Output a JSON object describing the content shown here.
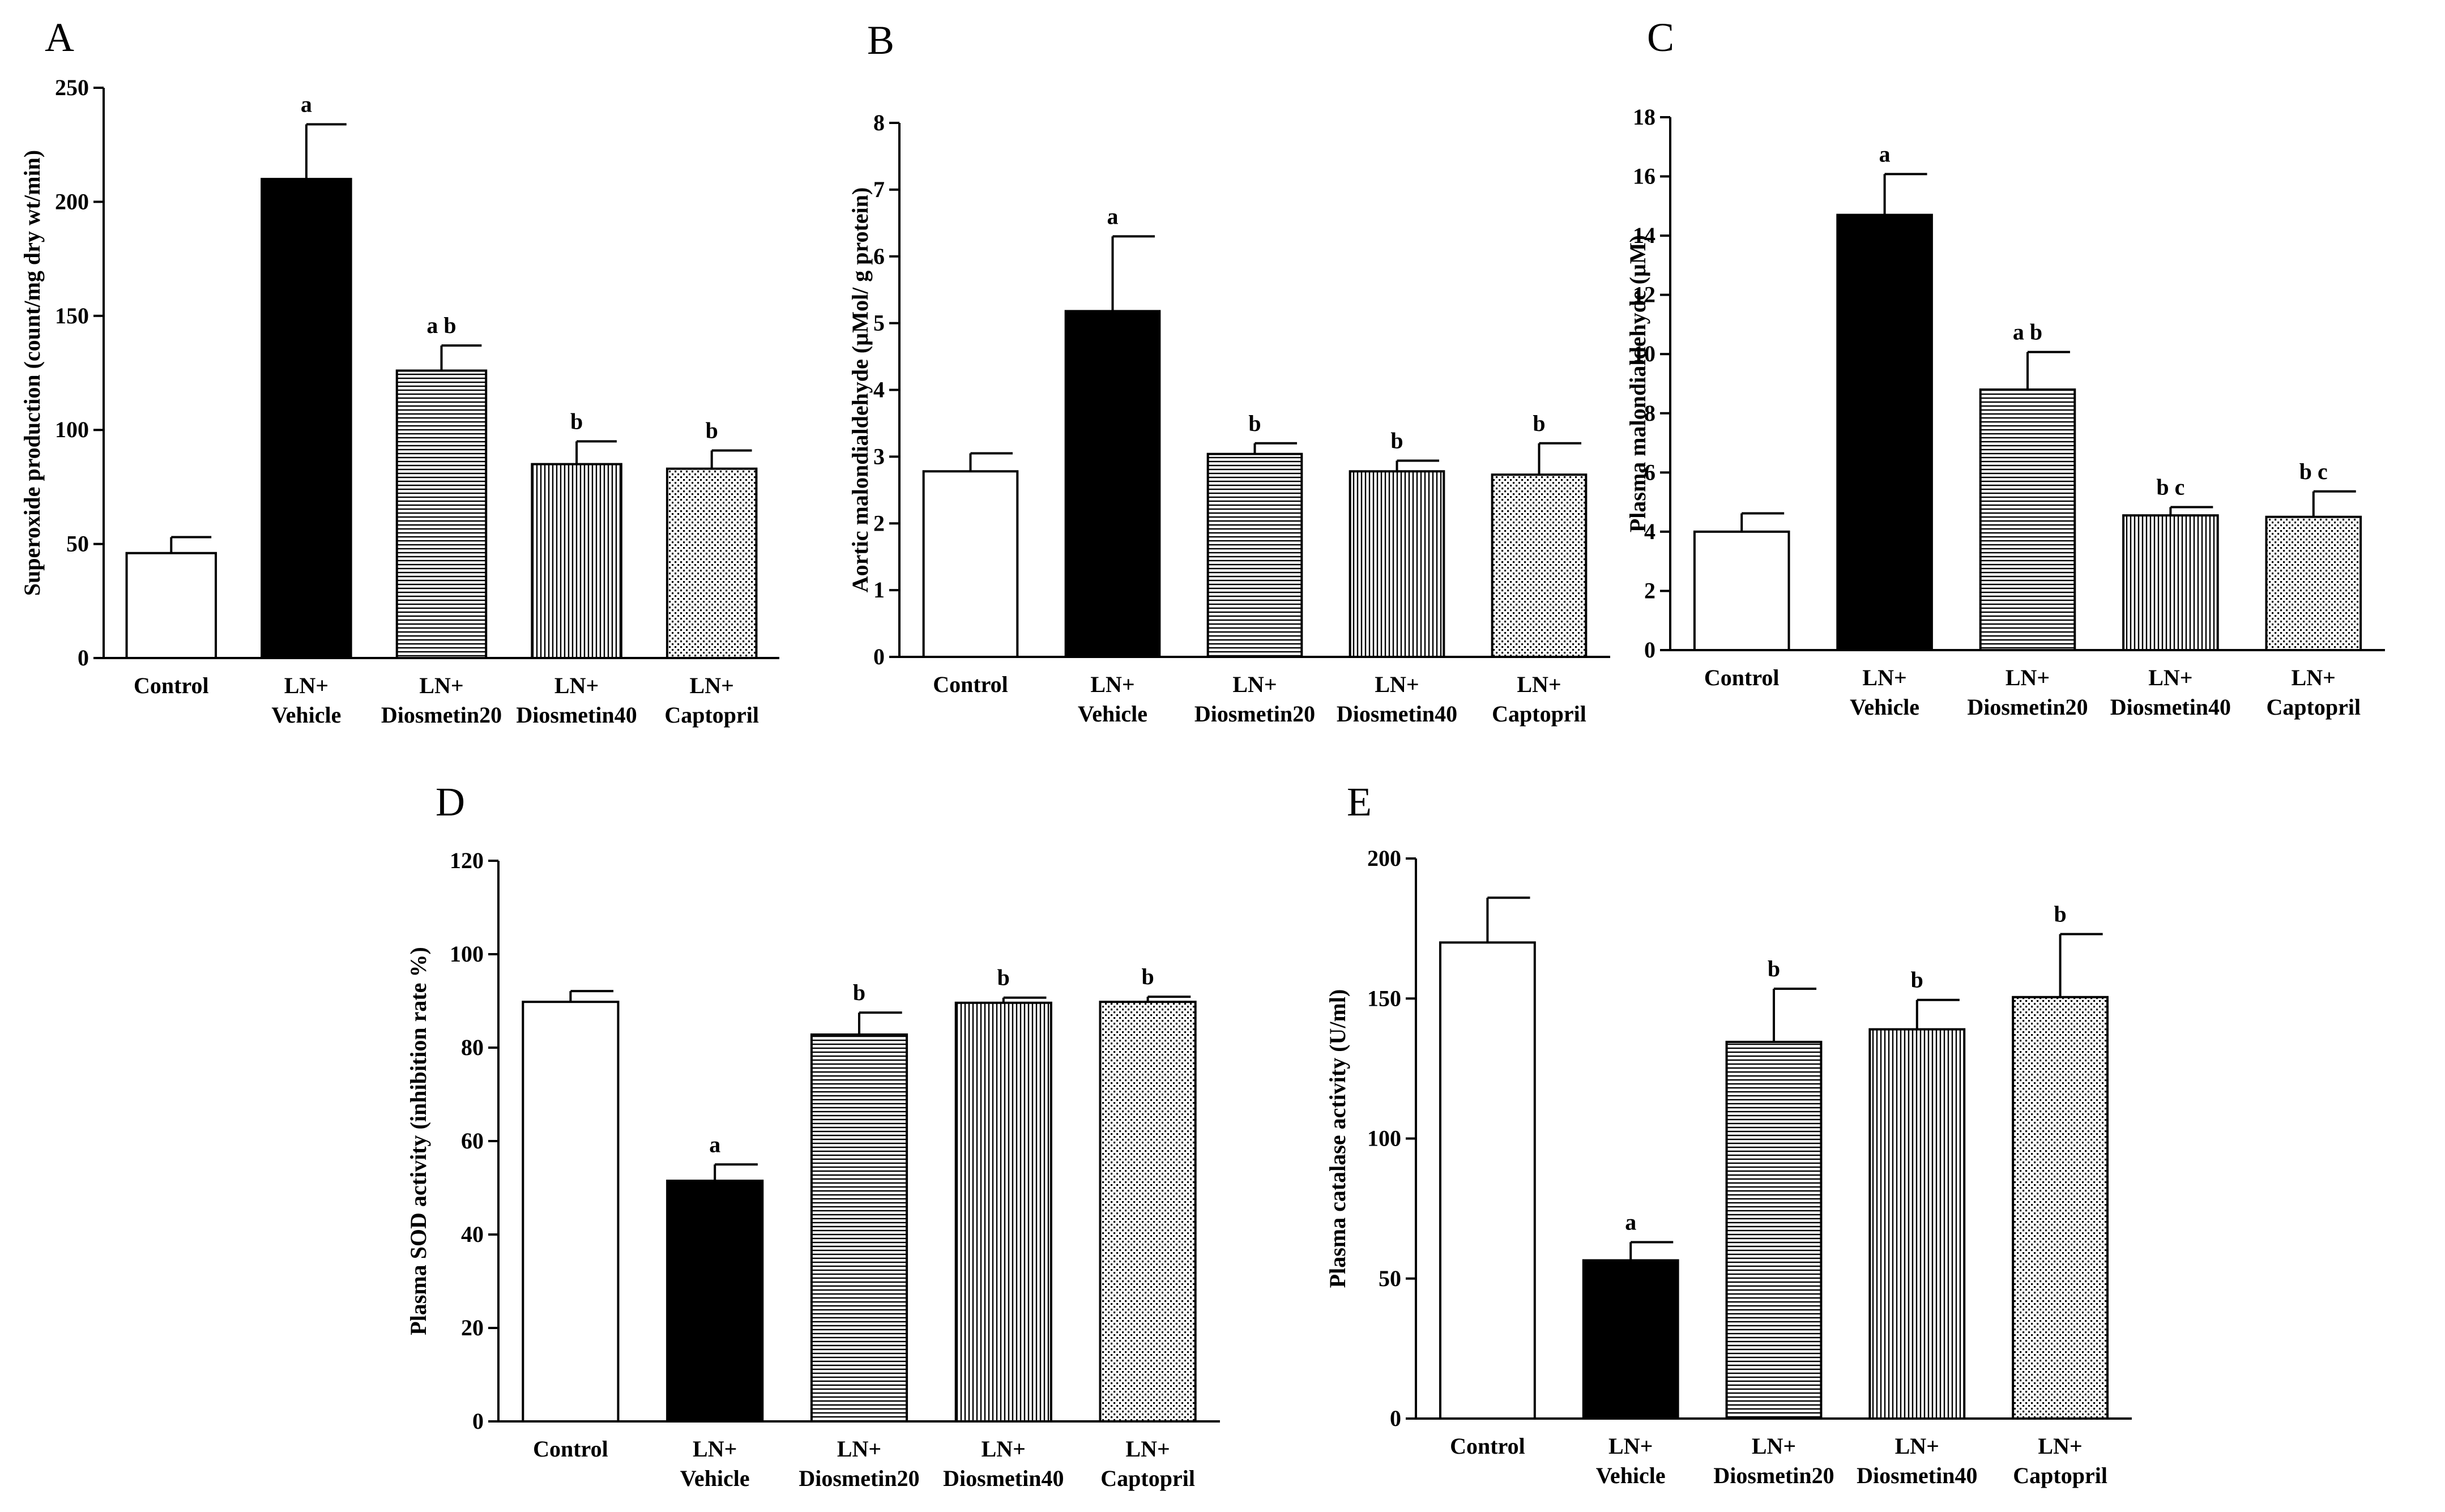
{
  "chart_data": [
    {
      "panel": "A",
      "type": "bar",
      "title": "",
      "xlabel": "",
      "ylabel": "Superoxide production (count/mg dry wt/min)",
      "ylim": [
        0,
        250
      ],
      "yticks": [
        0,
        50,
        100,
        150,
        200,
        250
      ],
      "categories": [
        [
          "Control"
        ],
        [
          "LN+",
          "Vehicle"
        ],
        [
          "LN+",
          "Diosmetin20"
        ],
        [
          "LN+",
          "Diosmetin40"
        ],
        [
          "LN+",
          "Captopril"
        ]
      ],
      "values": [
        46,
        210,
        126,
        85,
        83
      ],
      "errors": [
        7,
        24,
        11,
        10,
        8
      ],
      "significance": [
        "",
        "a",
        "a b",
        "b",
        "b"
      ],
      "fills": [
        "white",
        "black",
        "hlines",
        "vlines",
        "dots"
      ]
    },
    {
      "panel": "B",
      "type": "bar",
      "title": "",
      "xlabel": "",
      "ylabel": "Aortic malondialdehyde (µMol/ g protein)",
      "ylim": [
        0,
        8
      ],
      "yticks": [
        0,
        1,
        2,
        3,
        4,
        5,
        6,
        7,
        8
      ],
      "categories": [
        [
          "Control"
        ],
        [
          "LN+",
          "Vehicle"
        ],
        [
          "LN+",
          "Diosmetin20"
        ],
        [
          "LN+",
          "Diosmetin40"
        ],
        [
          "LN+",
          "Captopril"
        ]
      ],
      "values": [
        2.78,
        5.18,
        3.04,
        2.78,
        2.73
      ],
      "errors": [
        0.27,
        1.12,
        0.16,
        0.16,
        0.47
      ],
      "significance": [
        "",
        "a",
        "b",
        "b",
        "b"
      ],
      "fills": [
        "white",
        "black",
        "hlines",
        "vlines",
        "dots"
      ]
    },
    {
      "panel": "C",
      "type": "bar",
      "title": "",
      "xlabel": "",
      "ylabel": "Plasma malondialdehyde (µM)",
      "ylim": [
        0,
        18
      ],
      "yticks": [
        0,
        2,
        4,
        6,
        8,
        10,
        12,
        14,
        16,
        18
      ],
      "categories": [
        [
          "Control"
        ],
        [
          "LN+",
          "Vehicle"
        ],
        [
          "LN+",
          "Diosmetin20"
        ],
        [
          "LN+",
          "Diosmetin40"
        ],
        [
          "LN+",
          "Captopril"
        ]
      ],
      "values": [
        4.0,
        14.7,
        8.8,
        4.55,
        4.5
      ],
      "errors": [
        0.62,
        1.38,
        1.27,
        0.28,
        0.86
      ],
      "significance": [
        "",
        "a",
        "a b",
        "b c",
        "b c"
      ],
      "fills": [
        "white",
        "black",
        "hlines",
        "vlines",
        "dots"
      ]
    },
    {
      "panel": "D",
      "type": "bar",
      "title": "",
      "xlabel": "",
      "ylabel": "Plasma SOD activity (inhibition rate %)",
      "ylim": [
        0,
        120
      ],
      "yticks": [
        0,
        20,
        40,
        60,
        80,
        100,
        120
      ],
      "categories": [
        [
          "Control"
        ],
        [
          "LN+",
          "Vehicle"
        ],
        [
          "LN+",
          "Diosmetin20"
        ],
        [
          "LN+",
          "Diosmetin40"
        ],
        [
          "LN+",
          "Captopril"
        ]
      ],
      "values": [
        89.8,
        51.5,
        82.8,
        89.6,
        89.8
      ],
      "errors": [
        2.3,
        3.5,
        4.7,
        1.1,
        1.1
      ],
      "significance": [
        "",
        "a",
        "b",
        "b",
        "b"
      ],
      "fills": [
        "white",
        "black",
        "hlines",
        "vlines",
        "dots"
      ]
    },
    {
      "panel": "E",
      "type": "bar",
      "title": "",
      "xlabel": "",
      "ylabel": "Plasma catalase activity (U/ml)",
      "ylim": [
        0,
        200
      ],
      "yticks": [
        0,
        50,
        100,
        150,
        200
      ],
      "categories": [
        [
          "Control"
        ],
        [
          "LN+",
          "Vehicle"
        ],
        [
          "LN+",
          "Diosmetin20"
        ],
        [
          "LN+",
          "Diosmetin40"
        ],
        [
          "LN+",
          "Captopril"
        ]
      ],
      "values": [
        170,
        56.5,
        134.5,
        139,
        150.5
      ],
      "errors": [
        16,
        6.5,
        19,
        10.5,
        22.5
      ],
      "significance": [
        "",
        "a",
        "b",
        "b",
        "b"
      ],
      "fills": [
        "white",
        "black",
        "hlines",
        "vlines",
        "dots"
      ]
    }
  ]
}
